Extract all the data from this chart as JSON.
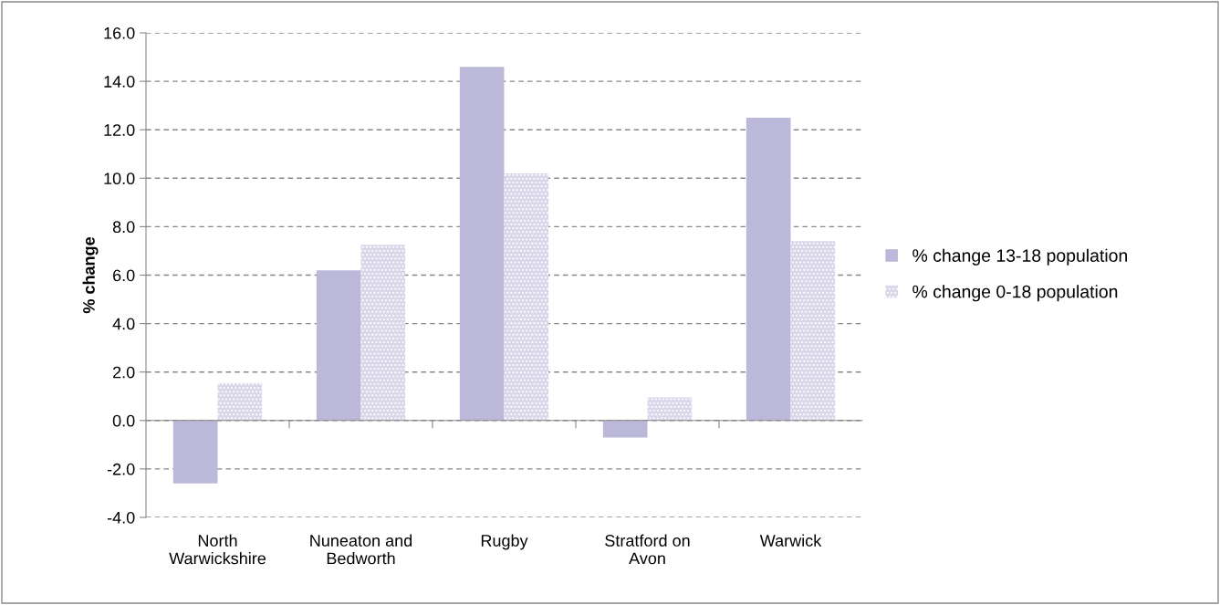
{
  "chart_data": {
    "type": "bar",
    "ylabel": "% change",
    "categories": [
      "North\nWarwickshire",
      "Nuneaton and\nBedworth",
      "Rugby",
      "Stratford on\nAvon",
      "Warwick"
    ],
    "series": [
      {
        "name": "% change 13-18 population",
        "color": "#bcb8da",
        "values": [
          -2.6,
          6.2,
          14.6,
          -0.7,
          12.5
        ]
      },
      {
        "name": "% change 0-18 population",
        "color": "#d9d6ea",
        "values": [
          1.55,
          7.25,
          10.2,
          0.95,
          7.4
        ]
      }
    ],
    "ylim": [
      -4,
      16
    ],
    "yticks": [
      {
        "value": -4,
        "label": "-4.0"
      },
      {
        "value": -2,
        "label": "-2.0"
      },
      {
        "value": 0,
        "label": "0.0"
      },
      {
        "value": 2,
        "label": "2.0"
      },
      {
        "value": 4,
        "label": "4.0"
      },
      {
        "value": 6,
        "label": "6.0"
      },
      {
        "value": 8,
        "label": "8.0"
      },
      {
        "value": 10,
        "label": "10.0"
      },
      {
        "value": 12,
        "label": "12.0"
      },
      {
        "value": 14,
        "label": "14.0"
      },
      {
        "value": 16,
        "label": "16.0"
      }
    ],
    "grid": "y",
    "legend": "right"
  }
}
